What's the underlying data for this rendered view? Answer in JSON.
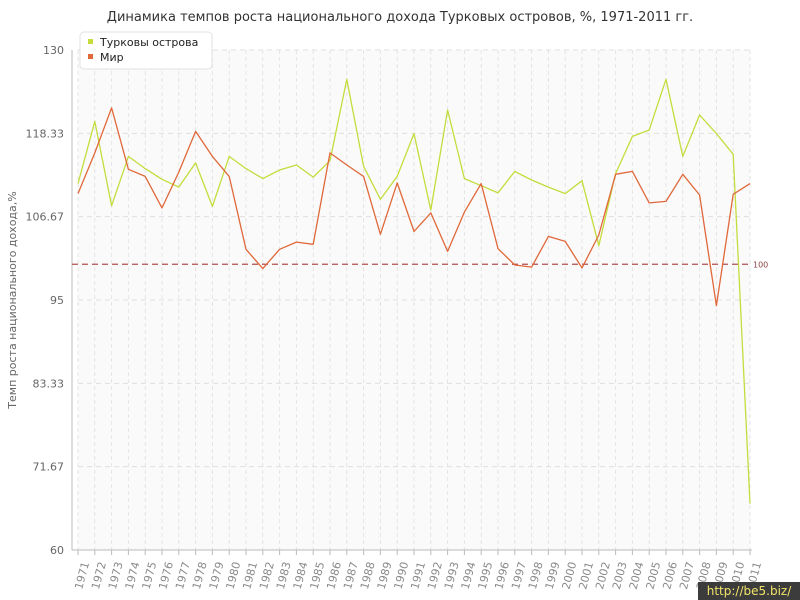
{
  "chart_data": {
    "type": "line",
    "title": "Динамика темпов роста национального дохода Турковых островов, %, 1971-2011 гг.",
    "ylabel": "Темп роста национального дохода,%",
    "xlabel": "",
    "ylim": [
      60,
      130
    ],
    "yticks": [
      "60",
      "71.67",
      "83.33",
      "95",
      "106.67",
      "118.33",
      "130"
    ],
    "grid": true,
    "legend_position": "top-left",
    "reference_line": {
      "value": 100,
      "label": "100",
      "color": "#b05050"
    },
    "x": [
      "1971",
      "1972",
      "1973",
      "1974",
      "1975",
      "1976",
      "1977",
      "1978",
      "1979",
      "1980",
      "1981",
      "1982",
      "1983",
      "1984",
      "1985",
      "1986",
      "1987",
      "1988",
      "1989",
      "1990",
      "1991",
      "1992",
      "1993",
      "1994",
      "1995",
      "1996",
      "1997",
      "1998",
      "1999",
      "2000",
      "2001",
      "2002",
      "2003",
      "2004",
      "2005",
      "2006",
      "2007",
      "2008",
      "2009",
      "2010",
      "2011"
    ],
    "series": [
      {
        "name": "Турковы острова",
        "color": "#c5dc3c",
        "values": [
          111.3,
          120.0,
          108.2,
          115.1,
          113.4,
          111.9,
          110.8,
          114.2,
          108.1,
          115.1,
          113.4,
          112.0,
          113.2,
          113.9,
          112.2,
          114.5,
          125.9,
          113.7,
          109.1,
          112.3,
          118.3,
          107.6,
          121.6,
          112.0,
          111.0,
          110.0,
          113.0,
          111.8,
          110.8,
          109.9,
          111.7,
          102.6,
          112.7,
          117.9,
          118.8,
          125.9,
          115.1,
          120.9,
          118.3,
          115.4,
          66.5
        ]
      },
      {
        "name": "Мир",
        "color": "#e0683a",
        "values": [
          109.9,
          115.6,
          121.9,
          113.3,
          112.3,
          107.9,
          112.9,
          118.6,
          115.1,
          112.3,
          102.1,
          99.4,
          102.1,
          103.1,
          102.8,
          115.6,
          113.9,
          112.3,
          104.2,
          111.4,
          104.6,
          107.2,
          101.8,
          107.3,
          111.3,
          102.2,
          99.9,
          99.6,
          103.9,
          103.2,
          99.5,
          104.1,
          112.6,
          113.0,
          108.6,
          108.8,
          112.6,
          109.7,
          94.2,
          109.8,
          111.3
        ]
      }
    ]
  },
  "watermark": "http://be5.biz/"
}
